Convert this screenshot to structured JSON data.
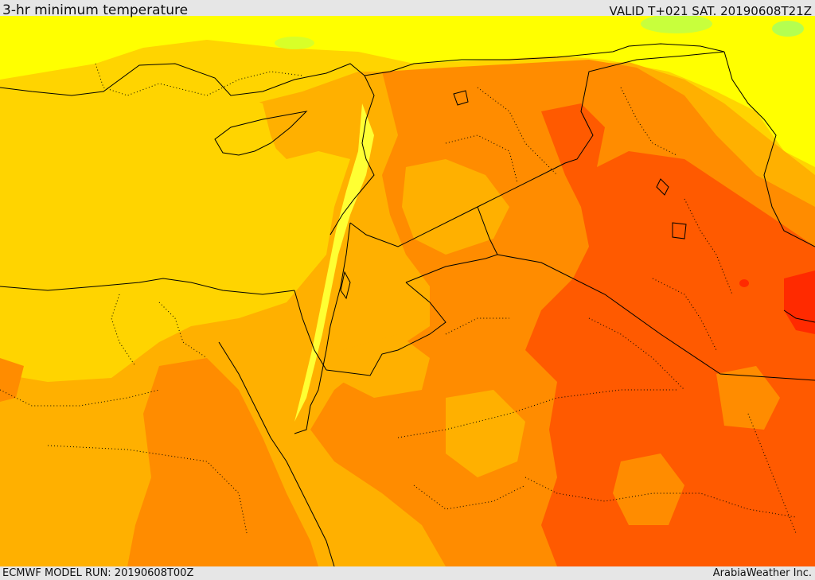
{
  "header": {
    "title": "3-hr minimum temperature",
    "valid": "VALID T+021 SAT. 20190608T21Z"
  },
  "footer": {
    "model_run": "ECMWF MODEL RUN: 20190608T00Z",
    "credit": "ArabiaWeather Inc."
  },
  "colors": {
    "frame_bg": "#e6e6e6",
    "temp_warm_yellow": "#ffd400",
    "temp_yellow": "#ffff00",
    "temp_light_orange": "#ffb000",
    "temp_orange": "#ff8c00",
    "temp_red_orange": "#ff5a00",
    "temp_red": "#ff2a00",
    "temp_green": "#7fff00",
    "border_line": "#000000"
  }
}
